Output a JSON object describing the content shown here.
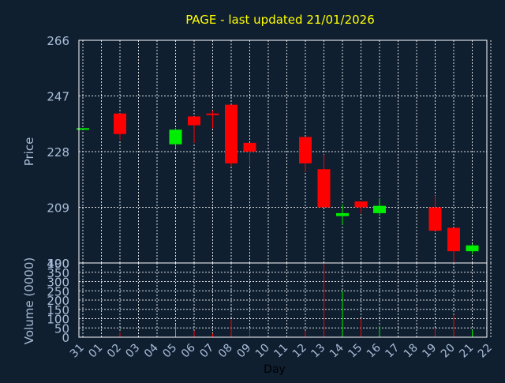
{
  "chart_data": {
    "type": "candlestick",
    "title": "PAGE - last updated 21/01/2026",
    "xlabel": "Day",
    "price_panel": {
      "ylabel": "Price",
      "ylim": [
        190,
        266
      ],
      "yticks": [
        266,
        247,
        228,
        209,
        190
      ]
    },
    "volume_panel": {
      "ylabel": "Volume (0000)",
      "ylim": [
        0,
        400
      ],
      "yticks": [
        0,
        50,
        100,
        150,
        200,
        250,
        300,
        350,
        400
      ]
    },
    "x_tick_labels": [
      "31",
      "01",
      "02",
      "03",
      "04",
      "05",
      "06",
      "07",
      "08",
      "09",
      "10",
      "11",
      "12",
      "13",
      "14",
      "15",
      "16",
      "17",
      "18",
      "19",
      "20",
      "21",
      "22"
    ],
    "colors": {
      "up": "#00ee00",
      "down": "#ff0000"
    },
    "candles": [
      {
        "i": 0,
        "open": 236,
        "close": 236,
        "high": 236,
        "low": 236,
        "volume": 0
      },
      {
        "i": 2,
        "open": 241,
        "close": 234,
        "high": 241,
        "low": 232,
        "volume": 25
      },
      {
        "i": 5,
        "open": 230.5,
        "close": 235.5,
        "high": 236,
        "low": 229,
        "volume": 70
      },
      {
        "i": 6,
        "open": 240,
        "close": 237,
        "high": 240,
        "low": 231,
        "volume": 35
      },
      {
        "i": 7,
        "open": 241,
        "close": 240.5,
        "high": 242,
        "low": 236,
        "volume": 20
      },
      {
        "i": 8,
        "open": 244,
        "close": 224,
        "high": 244,
        "low": 223,
        "volume": 95
      },
      {
        "i": 9,
        "open": 231,
        "close": 228,
        "high": 231,
        "low": 223,
        "volume": 40
      },
      {
        "i": 12,
        "open": 233,
        "close": 224,
        "high": 233,
        "low": 221,
        "volume": 35
      },
      {
        "i": 13,
        "open": 222,
        "close": 209,
        "high": 227,
        "low": 209,
        "volume": 400
      },
      {
        "i": 14,
        "open": 206,
        "close": 207,
        "high": 210,
        "low": 203,
        "volume": 250
      },
      {
        "i": 15,
        "open": 211,
        "close": 209,
        "high": 211,
        "low": 207,
        "volume": 100
      },
      {
        "i": 16,
        "open": 207,
        "close": 209.5,
        "high": 212,
        "low": 206,
        "volume": 60
      },
      {
        "i": 19,
        "open": 209,
        "close": 201,
        "high": 213,
        "low": 201,
        "volume": 50
      },
      {
        "i": 20,
        "open": 202,
        "close": 194,
        "high": 202,
        "low": 190,
        "volume": 120
      },
      {
        "i": 21,
        "open": 194,
        "close": 196,
        "high": 196.5,
        "low": 193,
        "volume": 40
      }
    ]
  }
}
